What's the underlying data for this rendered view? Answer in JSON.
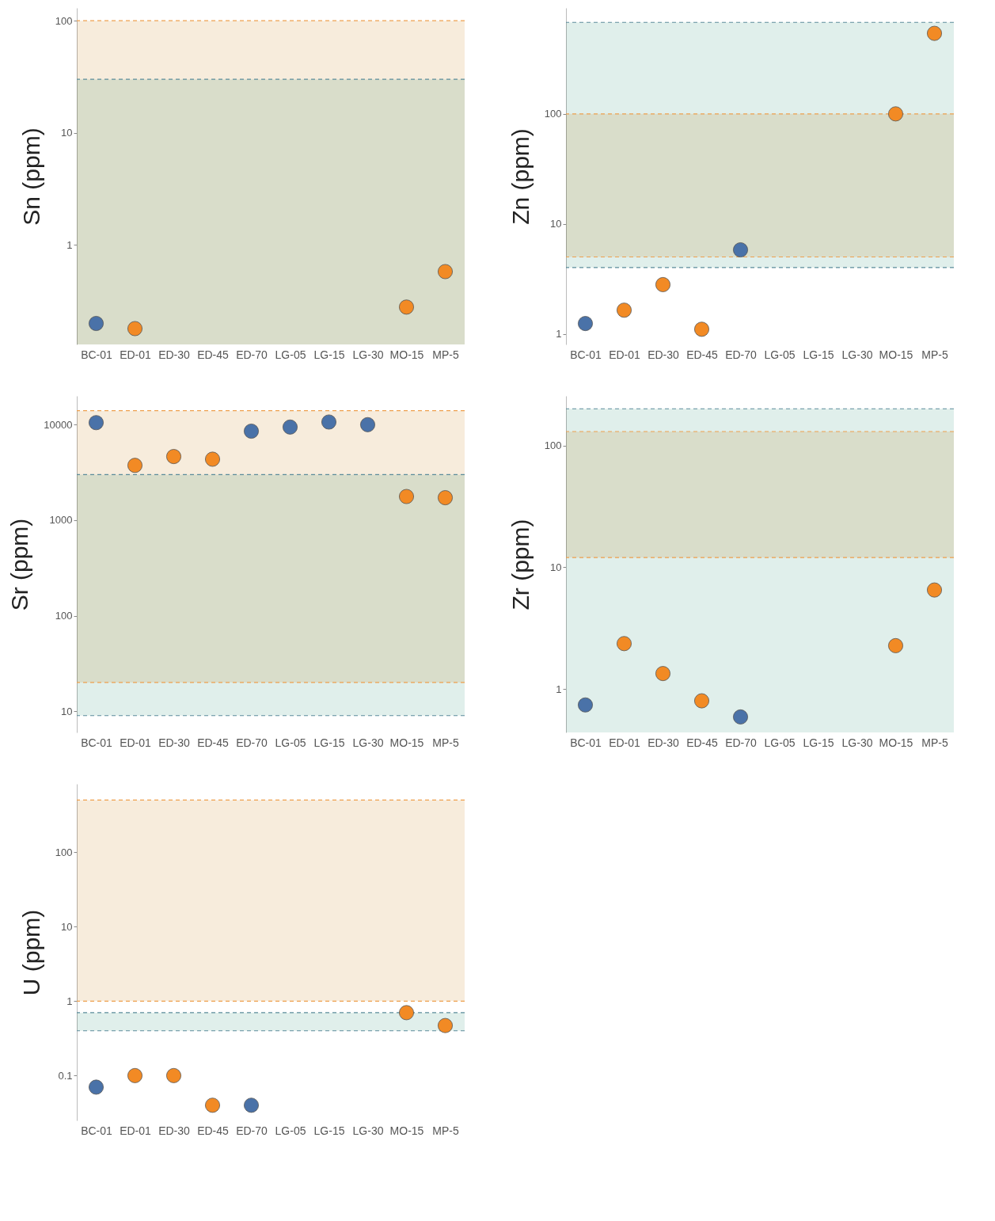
{
  "chart_data": [
    {
      "type": "scatter",
      "categories": [
        "BC-01",
        "ED-01",
        "ED-30",
        "ED-45",
        "ED-70",
        "LG-05",
        "LG-15",
        "LG-30",
        "MO-15",
        "MP-5"
      ],
      "ylabel": "Sn (ppm)",
      "log": true,
      "ylim": [
        0.13,
        130
      ],
      "yticks": [
        1,
        10,
        100
      ],
      "grid": false,
      "marker": "circle",
      "series": [
        {
          "color": "#4a72a8",
          "values": [
            0.2,
            null,
            null,
            null,
            null,
            null,
            null,
            null,
            null,
            null
          ]
        },
        {
          "color": "#f28a24",
          "values": [
            null,
            0.18,
            null,
            null,
            null,
            null,
            null,
            null,
            0.28,
            0.58
          ]
        }
      ],
      "bands": [
        {
          "axis": "y",
          "from": 0.13,
          "to": 100,
          "color": "#f7ecdc"
        },
        {
          "axis": "y",
          "from": 0.13,
          "to": 30,
          "color": "#e0efeb"
        }
      ],
      "ref_lines": [
        {
          "axis": "y",
          "value": 100,
          "color": "#eea04e",
          "line_style": "dashed"
        },
        {
          "axis": "y",
          "value": 30,
          "color": "#5b8c9a",
          "line_style": "dashed"
        }
      ]
    },
    {
      "type": "scatter",
      "categories": [
        "BC-01",
        "ED-01",
        "ED-30",
        "ED-45",
        "ED-70",
        "LG-05",
        "LG-15",
        "LG-30",
        "MO-15",
        "MP-5"
      ],
      "ylabel": "Zn (ppm)",
      "log": true,
      "ylim": [
        0.8,
        920
      ],
      "yticks": [
        1,
        10,
        100
      ],
      "grid": false,
      "marker": "circle",
      "series": [
        {
          "color": "#4a72a8",
          "values": [
            1.24,
            null,
            null,
            null,
            5.8,
            null,
            null,
            null,
            null,
            null
          ]
        },
        {
          "color": "#f28a24",
          "values": [
            null,
            1.64,
            2.8,
            1.1,
            null,
            null,
            null,
            null,
            100,
            540
          ]
        }
      ],
      "bands": [
        {
          "axis": "y",
          "from": 4,
          "to": 680,
          "color": "#e0efeb"
        },
        {
          "axis": "y",
          "from": 5,
          "to": 100,
          "color": "#f7ecdc"
        }
      ],
      "ref_lines": [
        {
          "axis": "y",
          "value": 680,
          "color": "#5b8c9a",
          "line_style": "dashed"
        },
        {
          "axis": "y",
          "value": 100,
          "color": "#eea04e",
          "line_style": "dashed"
        },
        {
          "axis": "y",
          "value": 5,
          "color": "#eea04e",
          "line_style": "dashed"
        },
        {
          "axis": "y",
          "value": 4,
          "color": "#5b8c9a",
          "line_style": "dashed"
        }
      ]
    },
    {
      "type": "scatter",
      "categories": [
        "BC-01",
        "ED-01",
        "ED-30",
        "ED-45",
        "ED-70",
        "LG-05",
        "LG-15",
        "LG-30",
        "MO-15",
        "MP-5"
      ],
      "ylabel": "Sr (ppm)",
      "log": true,
      "ylim": [
        6,
        20000
      ],
      "yticks": [
        10,
        100,
        1000,
        10000
      ],
      "grid": false,
      "marker": "circle",
      "series": [
        {
          "color": "#4a72a8",
          "values": [
            10500,
            null,
            null,
            null,
            8550,
            9440,
            10660,
            10000,
            null,
            null
          ]
        },
        {
          "color": "#f28a24",
          "values": [
            null,
            3750,
            4640,
            4350,
            null,
            null,
            null,
            null,
            1770,
            1720
          ]
        }
      ],
      "bands": [
        {
          "axis": "y",
          "from": 20,
          "to": 14000,
          "color": "#f7ecdc"
        },
        {
          "axis": "y",
          "from": 9,
          "to": 3000,
          "color": "#e0efeb"
        }
      ],
      "ref_lines": [
        {
          "axis": "y",
          "value": 14000,
          "color": "#eea04e",
          "line_style": "dashed"
        },
        {
          "axis": "y",
          "value": 3000,
          "color": "#5b8c9a",
          "line_style": "dashed"
        },
        {
          "axis": "y",
          "value": 20,
          "color": "#eea04e",
          "line_style": "dashed"
        },
        {
          "axis": "y",
          "value": 9,
          "color": "#5b8c9a",
          "line_style": "dashed"
        }
      ]
    },
    {
      "type": "scatter",
      "categories": [
        "BC-01",
        "ED-01",
        "ED-30",
        "ED-45",
        "ED-70",
        "LG-05",
        "LG-15",
        "LG-30",
        "MO-15",
        "MP-5"
      ],
      "ylabel": "Zr (ppm)",
      "log": true,
      "ylim": [
        0.44,
        255
      ],
      "yticks": [
        1,
        10,
        100
      ],
      "grid": false,
      "marker": "circle",
      "series": [
        {
          "color": "#4a72a8",
          "values": [
            0.74,
            null,
            null,
            null,
            0.59,
            null,
            null,
            null,
            null,
            null
          ]
        },
        {
          "color": "#f28a24",
          "values": [
            null,
            2.36,
            1.34,
            0.8,
            null,
            null,
            null,
            null,
            2.27,
            6.5
          ]
        }
      ],
      "bands": [
        {
          "axis": "y",
          "from": 0.44,
          "to": 200,
          "color": "#e0efeb"
        },
        {
          "axis": "y",
          "from": 12,
          "to": 130,
          "color": "#f7ecdc"
        }
      ],
      "ref_lines": [
        {
          "axis": "y",
          "value": 200,
          "color": "#5b8c9a",
          "line_style": "dashed"
        },
        {
          "axis": "y",
          "value": 130,
          "color": "#eea04e",
          "line_style": "dashed"
        },
        {
          "axis": "y",
          "value": 12,
          "color": "#eea04e",
          "line_style": "dashed"
        }
      ]
    },
    {
      "type": "scatter",
      "categories": [
        "BC-01",
        "ED-01",
        "ED-30",
        "ED-45",
        "ED-70",
        "LG-05",
        "LG-15",
        "LG-30",
        "MO-15",
        "MP-5"
      ],
      "ylabel": "U (ppm)",
      "log": true,
      "ylim": [
        0.025,
        825
      ],
      "yticks": [
        0.1,
        1,
        10,
        100
      ],
      "grid": false,
      "marker": "circle",
      "series": [
        {
          "color": "#4a72a8",
          "values": [
            0.07,
            null,
            null,
            null,
            0.04,
            null,
            null,
            null,
            null,
            null
          ]
        },
        {
          "color": "#f28a24",
          "values": [
            null,
            0.1,
            0.1,
            0.04,
            null,
            null,
            null,
            null,
            0.7,
            0.47
          ]
        }
      ],
      "bands": [
        {
          "axis": "y",
          "from": 1,
          "to": 500,
          "color": "#f7ecdc"
        },
        {
          "axis": "y",
          "from": 0.4,
          "to": 0.7,
          "color": "#e0efeb"
        }
      ],
      "ref_lines": [
        {
          "axis": "y",
          "value": 500,
          "color": "#eea04e",
          "line_style": "dashed"
        },
        {
          "axis": "y",
          "value": 1,
          "color": "#eea04e",
          "line_style": "dashed"
        },
        {
          "axis": "y",
          "value": 0.7,
          "color": "#5b8c9a",
          "line_style": "dashed"
        },
        {
          "axis": "y",
          "value": 0.4,
          "color": "#5b8c9a",
          "line_style": "dashed"
        }
      ]
    }
  ]
}
